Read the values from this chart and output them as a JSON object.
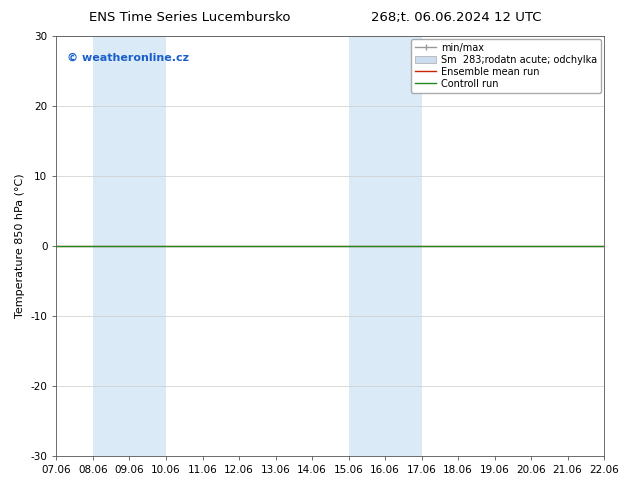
{
  "title_left": "ENS Time Series Lucembursko",
  "title_right": "268;t. 06.06.2024 12 UTC",
  "ylabel": "Temperature 850 hPa (°C)",
  "watermark": "© weatheronline.cz",
  "watermark_color": "#1a5fcc",
  "ylim": [
    -30,
    30
  ],
  "yticks": [
    -30,
    -20,
    -10,
    0,
    10,
    20,
    30
  ],
  "x_labels": [
    "07.06",
    "08.06",
    "09.06",
    "10.06",
    "11.06",
    "12.06",
    "13.06",
    "14.06",
    "15.06",
    "16.06",
    "17.06",
    "18.06",
    "19.06",
    "20.06",
    "21.06",
    "22.06"
  ],
  "x_values": [
    0,
    1,
    2,
    3,
    4,
    5,
    6,
    7,
    8,
    9,
    10,
    11,
    12,
    13,
    14,
    15
  ],
  "shaded_regions": [
    {
      "xmin": 1,
      "xmax": 3,
      "color": "#daeaf7"
    },
    {
      "xmin": 8,
      "xmax": 10,
      "color": "#daeaf7"
    }
  ],
  "flat_line_y": 0,
  "flat_line_color_ensemble": "#cc2200",
  "flat_line_color_control": "#228822",
  "background_color": "#ffffff",
  "plot_bg_color": "#ffffff",
  "grid_color": "#cccccc",
  "legend_labels": [
    "min/max",
    "Sm  283;rodatn acute; odchylka",
    "Ensemble mean run",
    "Controll run"
  ],
  "legend_colors_line": [
    "#999999",
    "#bbccdd",
    "#cc2200",
    "#228822"
  ],
  "title_fontsize": 9.5,
  "axis_label_fontsize": 8,
  "tick_fontsize": 7.5,
  "legend_fontsize": 7,
  "watermark_fontsize": 8
}
